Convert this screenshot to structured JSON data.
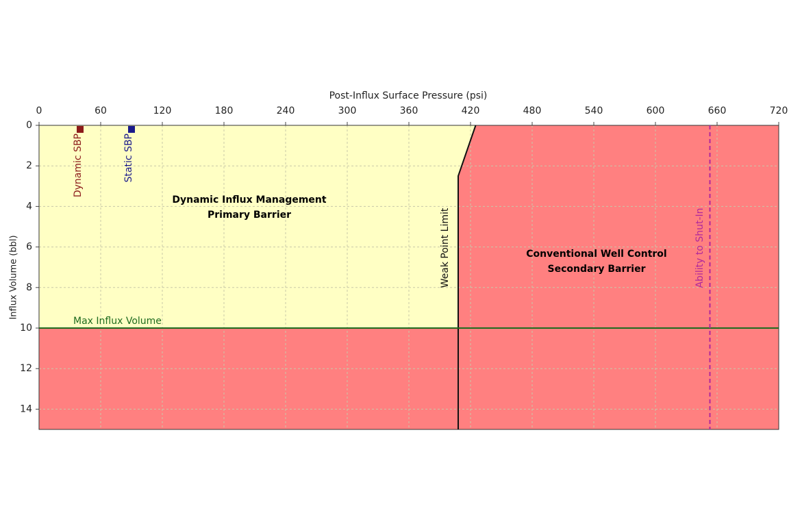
{
  "chart_data": {
    "type": "line",
    "x_label": "Post-Influx Surface Pressure (psi)",
    "y_label": "Influx Volume (bbl)",
    "xlim": [
      0,
      720
    ],
    "xticks": [
      0,
      60,
      120,
      180,
      240,
      300,
      360,
      420,
      480,
      540,
      600,
      660,
      720
    ],
    "ylim": [
      0,
      15
    ],
    "yticks": [
      0,
      2,
      4,
      6,
      8,
      10,
      12,
      14
    ],
    "y_inverted": true,
    "grid": true,
    "zones": [
      {
        "lines": [
          "Dynamic Influx Management",
          "Primary Barrier"
        ],
        "color": "#ffffc4"
      },
      {
        "lines": [
          "Conventional Well Control",
          "Secondary Barrier"
        ],
        "color": "#ff8080"
      }
    ],
    "series": [
      {
        "name": "Weak Point Limit",
        "color": "#111111",
        "x": [
          425,
          408,
          408
        ],
        "values": [
          0,
          2.5,
          15
        ]
      },
      {
        "name": "Max Influx Volume",
        "color": "#1e6b1e",
        "x": [
          0,
          720
        ],
        "values": [
          10,
          10
        ]
      },
      {
        "name": "Ability to Shut-In",
        "color": "#b0289c",
        "x": [
          653,
          653
        ],
        "values": [
          0,
          15
        ],
        "dashed": true
      },
      {
        "name": "Dynamic SBP",
        "color": "#8b1a1a",
        "x": [
          40
        ],
        "values": [
          0.2
        ],
        "marker": "square"
      },
      {
        "name": "Static SBP",
        "color": "#1a1a8b",
        "x": [
          90
        ],
        "values": [
          0.2
        ],
        "marker": "square"
      }
    ]
  }
}
